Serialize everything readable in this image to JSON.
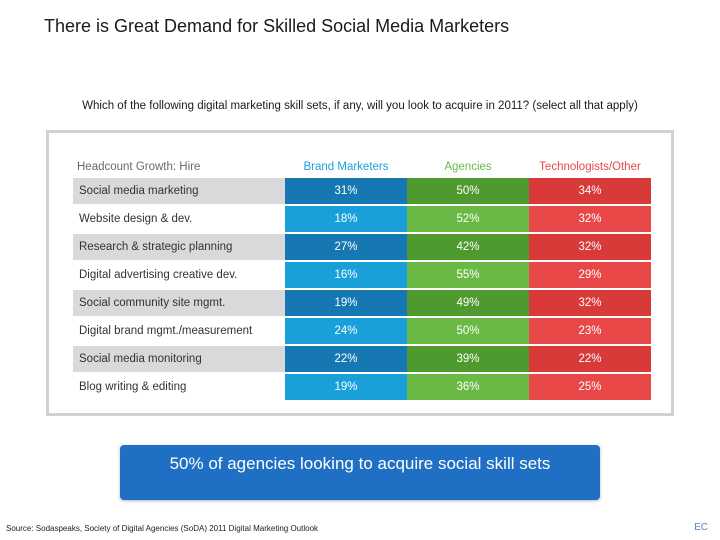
{
  "slide": {
    "title": "There is Great Demand for Skilled Social Media Marketers",
    "question": "Which of the following digital marketing skill sets, if any, will you look to acquire in 2011? (select all that apply)",
    "callout": "50% of agencies looking to acquire social skill sets",
    "source": "Source: Sodaspeaks, Society of Digital Agencies (SoDA) 2011 Digital Marketing Outlook",
    "corner_mark": "EC"
  },
  "table": {
    "row_header": "Headcount Growth: Hire",
    "columns": [
      {
        "label": "Brand Marketers",
        "color": "#1aa0d8"
      },
      {
        "label": "Agencies",
        "color": "#6bb945"
      },
      {
        "label": "Technologists/Other",
        "color": "#e84848"
      }
    ],
    "rows": [
      {
        "label": "Social media marketing",
        "values": [
          "31%",
          "50%",
          "34%"
        ]
      },
      {
        "label": "Website design & dev.",
        "values": [
          "18%",
          "52%",
          "32%"
        ]
      },
      {
        "label": "Research & strategic planning",
        "values": [
          "27%",
          "42%",
          "32%"
        ]
      },
      {
        "label": "Digital advertising creative dev.",
        "values": [
          "16%",
          "55%",
          "29%"
        ]
      },
      {
        "label": "Social community site mgmt.",
        "values": [
          "19%",
          "49%",
          "32%"
        ]
      },
      {
        "label": "Digital brand mgmt./measurement",
        "values": [
          "24%",
          "50%",
          "23%"
        ]
      },
      {
        "label": "Social media monitoring",
        "values": [
          "22%",
          "39%",
          "22%"
        ]
      },
      {
        "label": "Blog writing & editing",
        "values": [
          "19%",
          "36%",
          "25%"
        ]
      }
    ]
  }
}
